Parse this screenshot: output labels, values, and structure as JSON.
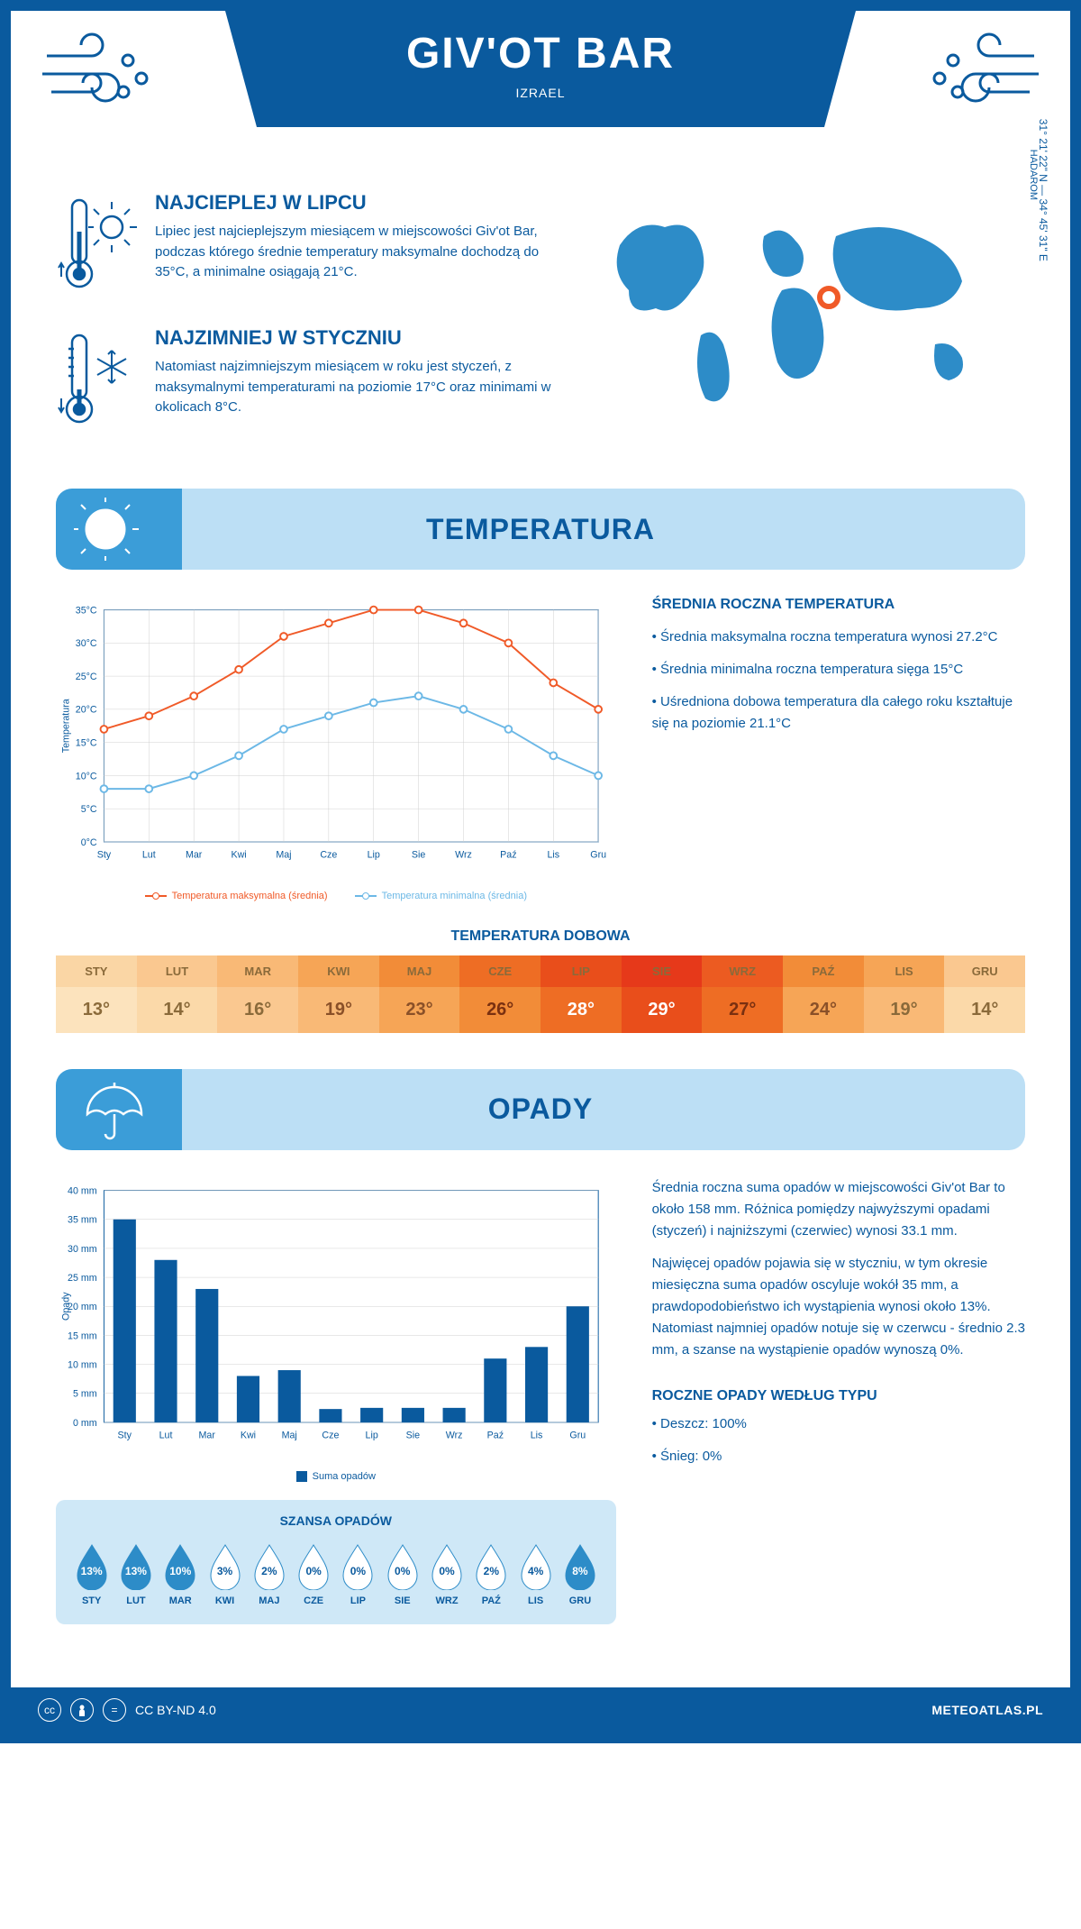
{
  "header": {
    "title": "GIV'OT BAR",
    "country": "IZRAEL"
  },
  "coords": "31° 21' 22\" N — 34° 45' 31\" E",
  "region": "HADAROM",
  "warmest": {
    "title": "NAJCIEPLEJ W LIPCU",
    "text": "Lipiec jest najcieplejszym miesiącem w miejscowości Giv'ot Bar, podczas którego średnie temperatury maksymalne dochodzą do 35°C, a minimalne osiągają 21°C."
  },
  "coldest": {
    "title": "NAJZIMNIEJ W STYCZNIU",
    "text": "Natomiast najzimniejszym miesiącem w roku jest styczeń, z maksymalnymi temperaturami na poziomie 17°C oraz minimami w okolicach 8°C."
  },
  "sections": {
    "temperature": "TEMPERATURA",
    "rainfall": "OPADY"
  },
  "temp_chart": {
    "months": [
      "Sty",
      "Lut",
      "Mar",
      "Kwi",
      "Maj",
      "Cze",
      "Lip",
      "Sie",
      "Wrz",
      "Paź",
      "Lis",
      "Gru"
    ],
    "ylabel": "Temperatura",
    "ylim": [
      0,
      35
    ],
    "ytick_step": 5,
    "max_color": "#f05a28",
    "min_color": "#6cb8e6",
    "grid_color": "#d8d8d8",
    "series": {
      "max": [
        17,
        19,
        22,
        26,
        31,
        33,
        35,
        35,
        33,
        30,
        24,
        20
      ],
      "min": [
        8,
        8,
        10,
        13,
        17,
        19,
        21,
        22,
        20,
        17,
        13,
        10
      ]
    },
    "legend": {
      "max": "Temperatura maksymalna (średnia)",
      "min": "Temperatura minimalna (średnia)"
    }
  },
  "temp_side": {
    "title": "ŚREDNIA ROCZNA TEMPERATURA",
    "bullets": [
      "Średnia maksymalna roczna temperatura wynosi 27.2°C",
      "Średnia minimalna roczna temperatura sięga 15°C",
      "Uśredniona dobowa temperatura dla całego roku kształtuje się na poziomie 21.1°C"
    ]
  },
  "daily_temp": {
    "title": "TEMPERATURA DOBOWA",
    "months": [
      "STY",
      "LUT",
      "MAR",
      "KWI",
      "MAJ",
      "CZE",
      "LIP",
      "SIE",
      "WRZ",
      "PAŹ",
      "LIS",
      "GRU"
    ],
    "values": [
      13,
      14,
      16,
      19,
      23,
      26,
      28,
      29,
      27,
      24,
      19,
      14
    ],
    "header_colors": [
      "#fad6a5",
      "#fac890",
      "#f9b976",
      "#f6a556",
      "#f28c38",
      "#ee6d24",
      "#e94e1b",
      "#e6391a",
      "#ec5b21",
      "#f28c38",
      "#f6a556",
      "#fac890"
    ],
    "value_colors": [
      "#fce3bd",
      "#fbd9a9",
      "#fac890",
      "#f9b976",
      "#f6a556",
      "#f28c38",
      "#ee6d24",
      "#e94e1b",
      "#ee6d24",
      "#f6a556",
      "#f9b976",
      "#fbd9a9"
    ],
    "text_colors": [
      "#8a6a3a",
      "#8a6a3a",
      "#8a6a3a",
      "#8a5028",
      "#8a5028",
      "#7a3010",
      "#ffffff",
      "#ffffff",
      "#7a3010",
      "#8a5028",
      "#8a6a3a",
      "#8a6a3a"
    ]
  },
  "rain_chart": {
    "months": [
      "Sty",
      "Lut",
      "Mar",
      "Kwi",
      "Maj",
      "Cze",
      "Lip",
      "Sie",
      "Wrz",
      "Paź",
      "Lis",
      "Gru"
    ],
    "ylabel": "Opady",
    "ylim": [
      0,
      40
    ],
    "ytick_step": 5,
    "bar_color": "#0a5a9e",
    "values": [
      35,
      28,
      23,
      8,
      9,
      2.3,
      2.5,
      2.5,
      2.5,
      11,
      13,
      20
    ],
    "legend": "Suma opadów"
  },
  "rain_side": {
    "p1": "Średnia roczna suma opadów w miejscowości Giv'ot Bar to około 158 mm. Różnica pomiędzy najwyższymi opadami (styczeń) i najniższymi (czerwiec) wynosi 33.1 mm.",
    "p2": "Najwięcej opadów pojawia się w styczniu, w tym okresie miesięczna suma opadów oscyluje wokół 35 mm, a prawdopodobieństwo ich wystąpienia wynosi około 13%. Natomiast najmniej opadów notuje się w czerwcu - średnio 2.3 mm, a szanse na wystąpienie opadów wynoszą 0%."
  },
  "chance": {
    "title": "SZANSA OPADÓW",
    "months": [
      "STY",
      "LUT",
      "MAR",
      "KWI",
      "MAJ",
      "CZE",
      "LIP",
      "SIE",
      "WRZ",
      "PAŹ",
      "LIS",
      "GRU"
    ],
    "values": [
      "13%",
      "13%",
      "10%",
      "3%",
      "2%",
      "0%",
      "0%",
      "0%",
      "0%",
      "2%",
      "4%",
      "8%"
    ],
    "filled": [
      true,
      true,
      true,
      false,
      false,
      false,
      false,
      false,
      false,
      false,
      false,
      true
    ],
    "fill_color": "#2d8cc8",
    "empty_color": "#ffffff"
  },
  "rain_type": {
    "title": "ROCZNE OPADY WEDŁUG TYPU",
    "bullets": [
      "Deszcz: 100%",
      "Śnieg: 0%"
    ]
  },
  "footer": {
    "license": "CC BY-ND 4.0",
    "site": "METEOATLAS.PL"
  },
  "colors": {
    "primary": "#0a5a9e",
    "accent": "#2d8cc8",
    "light": "#bcdff5"
  }
}
